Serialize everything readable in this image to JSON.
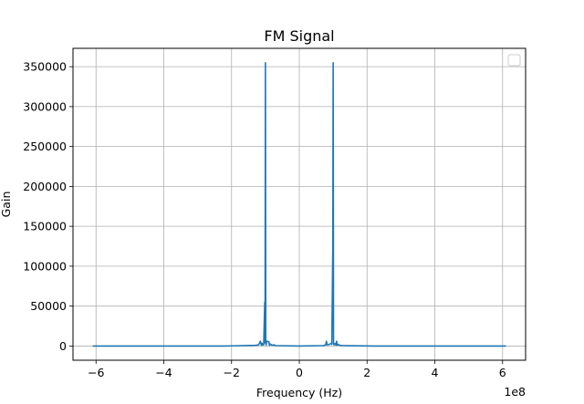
{
  "chart_data": {
    "type": "line",
    "title": "FM Signal",
    "xlabel": "Frequency (Hz)",
    "ylabel": "Gain",
    "x_offset_label": "1e8",
    "xlim": [
      -668000000.0,
      668000000.0
    ],
    "ylim": [
      -17800,
      373000
    ],
    "x_ticks": [
      -600000000.0,
      -400000000.0,
      -200000000.0,
      0,
      200000000.0,
      400000000.0,
      600000000.0
    ],
    "x_tick_labels": [
      "−6",
      "−4",
      "−2",
      "0",
      "2",
      "4",
      "6"
    ],
    "y_ticks": [
      0,
      50000,
      100000,
      150000,
      200000,
      250000,
      300000,
      350000
    ],
    "y_tick_labels": [
      "0",
      "50000",
      "100000",
      "150000",
      "200000",
      "250000",
      "300000",
      "350000"
    ],
    "grid": true,
    "legend": {
      "placement": "top-right",
      "entries": []
    },
    "series": [
      {
        "color": "#1f77b4",
        "x": [
          -610000000.0,
          -220000000.0,
          -130000000.0,
          -120000000.0,
          -115000000.0,
          -112000000.0,
          -110000000.0,
          -108000000.0,
          -105000000.0,
          -102000000.0,
          -101000000.0,
          -100000000.0,
          -99000000.0,
          -98000000.0,
          -96000000.0,
          -90000000.0,
          -88000000.0,
          -86000000.0,
          -80000000.0,
          -75000000.0,
          -70000000.0,
          0,
          70000000.0,
          78000000.0,
          80000000.0,
          82000000.0,
          88000000.0,
          93000000.0,
          96000000.0,
          98000000.0,
          99000000.0,
          100000000.0,
          101000000.0,
          102000000.0,
          105000000.0,
          108000000.0,
          110000000.0,
          112000000.0,
          115000000.0,
          120000000.0,
          130000000.0,
          220000000.0,
          610000000.0
        ],
        "y": [
          0,
          0,
          800,
          1500,
          6000,
          1200,
          3500,
          1000,
          2000,
          55000,
          4000,
          355000,
          5000,
          1200,
          6000,
          5500,
          800,
          2500,
          1000,
          1500,
          500,
          0,
          500,
          1500,
          6000,
          1500,
          2000,
          3000,
          2000,
          85000,
          125000,
          355000,
          4000,
          1500,
          3000,
          1200,
          6000,
          1000,
          2000,
          800,
          500,
          0,
          0
        ]
      }
    ]
  }
}
